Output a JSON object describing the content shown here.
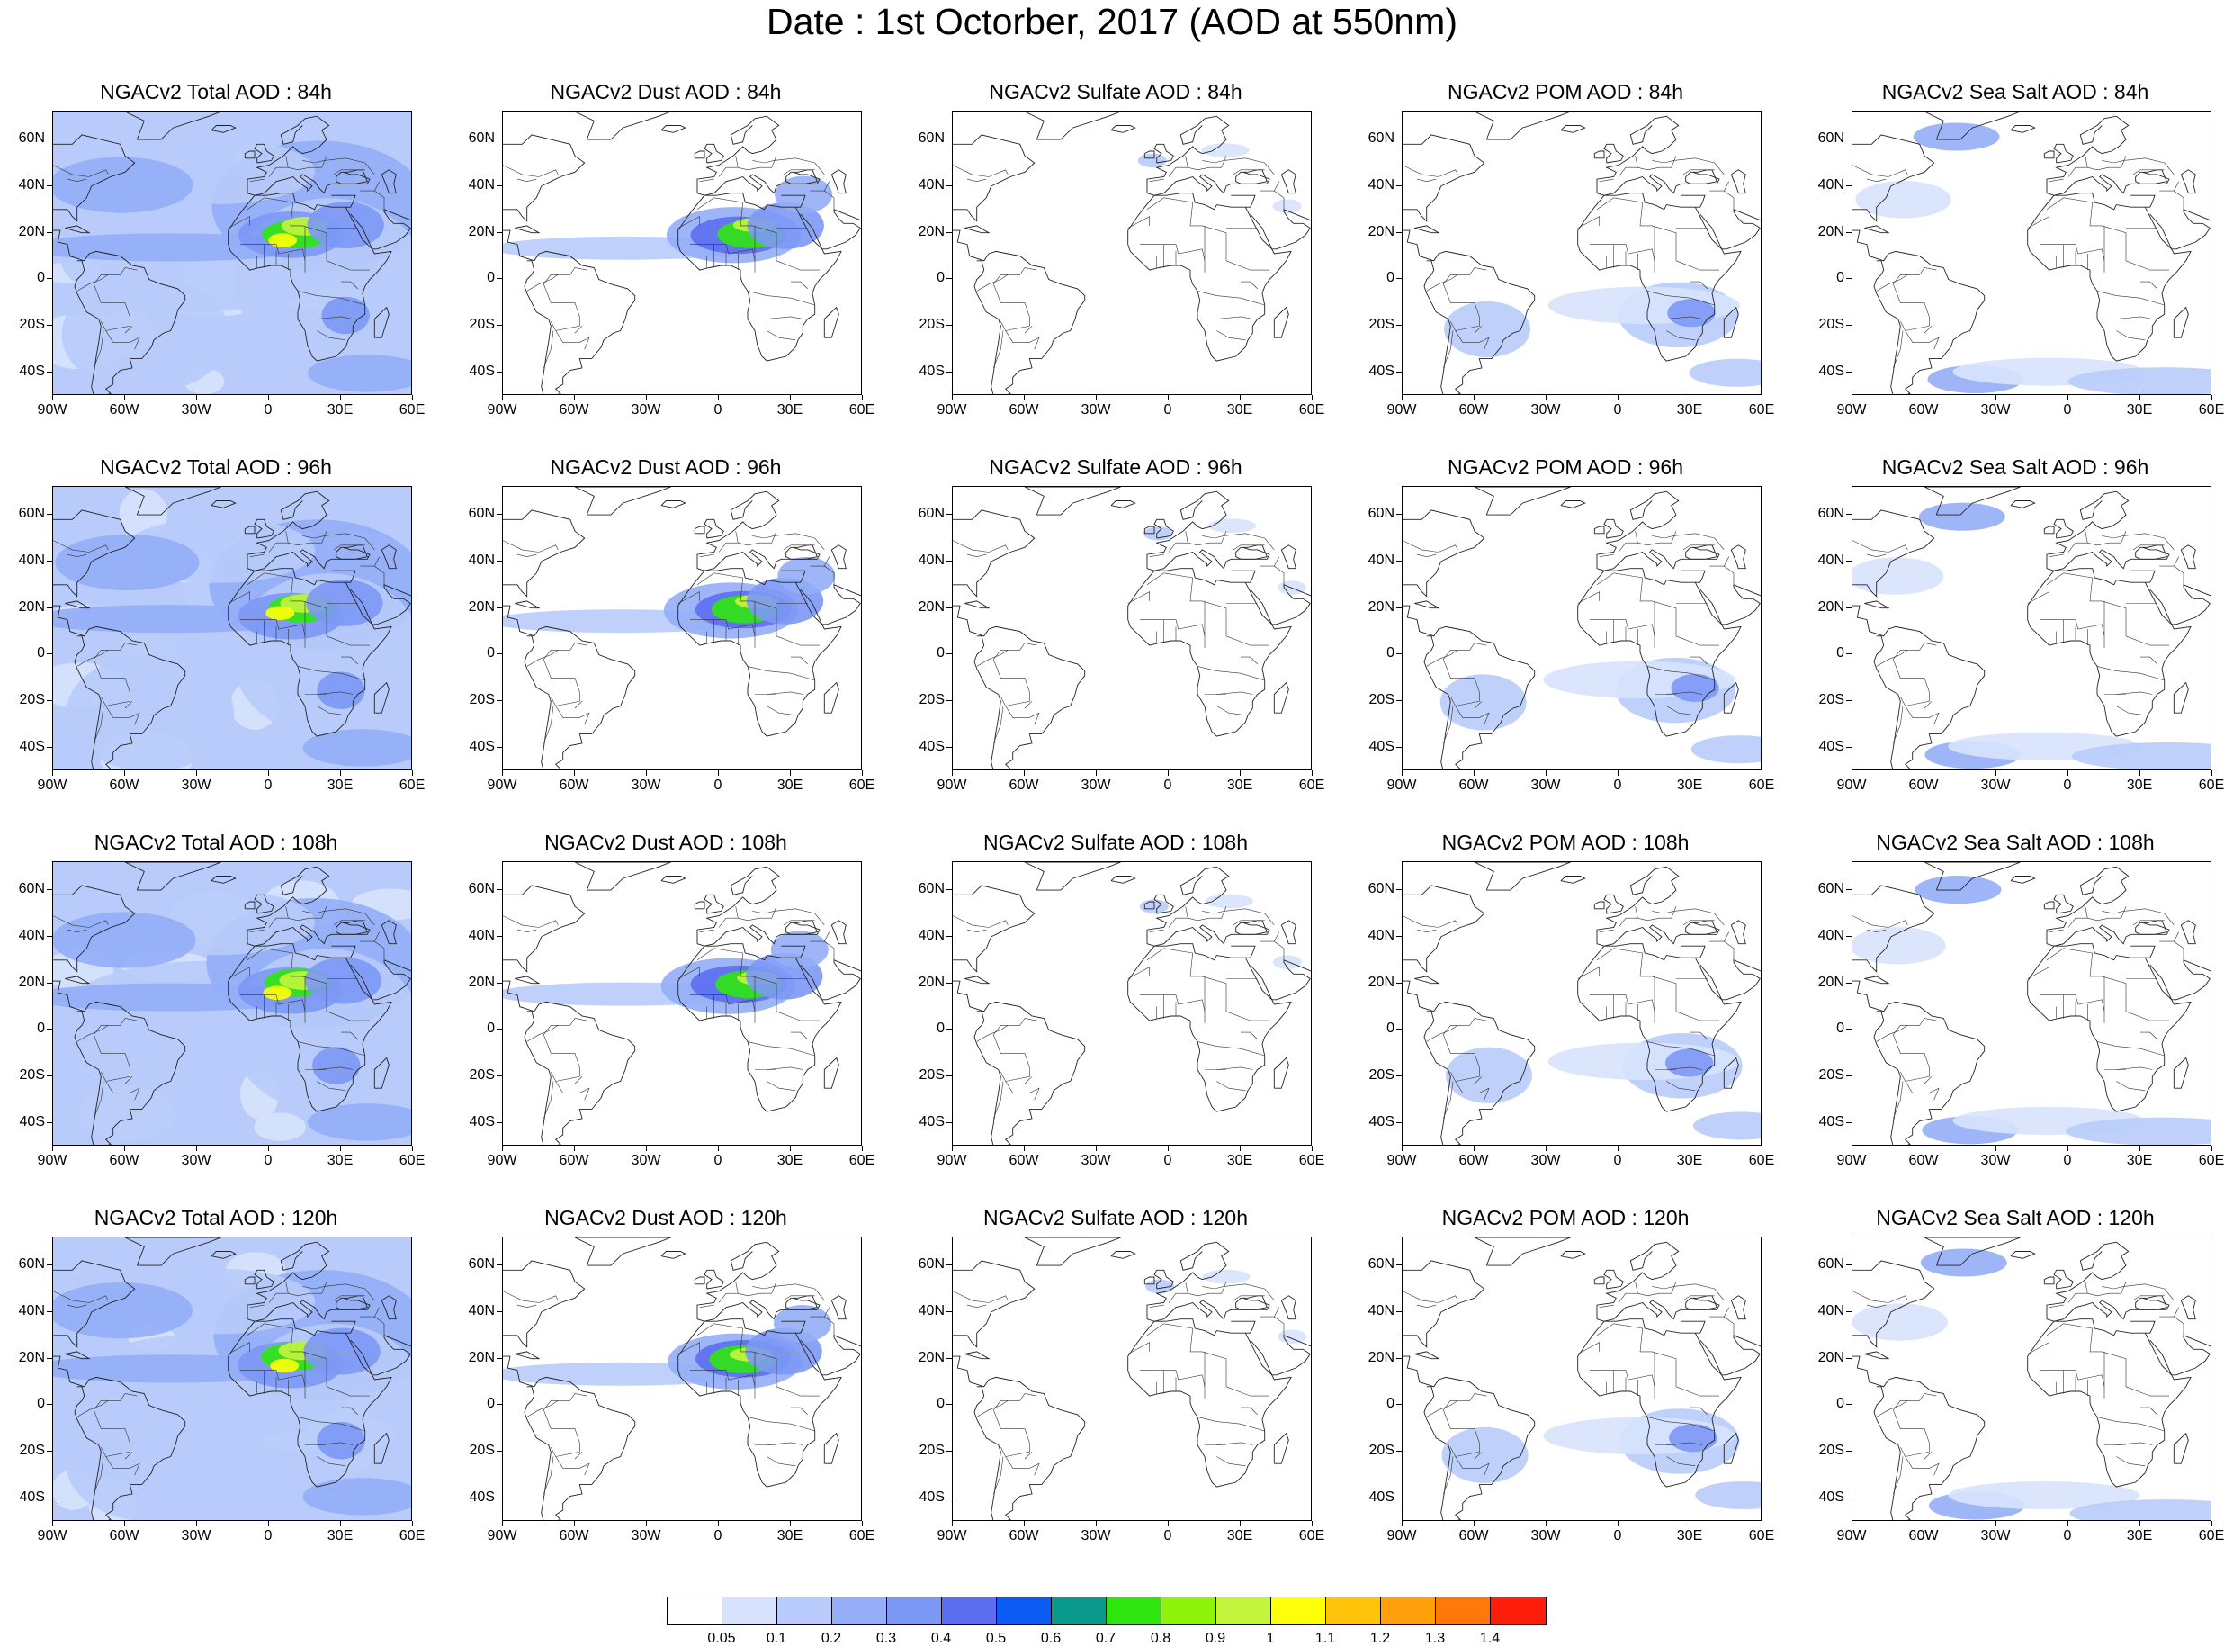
{
  "title": "Date : 1st Octorber, 2017 (AOD at 550nm)",
  "panels": [
    [
      {
        "title": "NGACv2 Total AOD : 84h",
        "species": "total"
      },
      {
        "title": "NGACv2 Dust AOD : 84h",
        "species": "dust"
      },
      {
        "title": "NGACv2 Sulfate AOD : 84h",
        "species": "sulfate"
      },
      {
        "title": "NGACv2 POM AOD : 84h",
        "species": "pom"
      },
      {
        "title": "NGACv2 Sea Salt AOD : 84h",
        "species": "seasalt"
      }
    ],
    [
      {
        "title": "NGACv2 Total AOD : 96h",
        "species": "total"
      },
      {
        "title": "NGACv2 Dust AOD : 96h",
        "species": "dust"
      },
      {
        "title": "NGACv2 Sulfate AOD : 96h",
        "species": "sulfate"
      },
      {
        "title": "NGACv2 POM AOD : 96h",
        "species": "pom"
      },
      {
        "title": "NGACv2 Sea Salt AOD : 96h",
        "species": "seasalt"
      }
    ],
    [
      {
        "title": "NGACv2 Total AOD : 108h",
        "species": "total"
      },
      {
        "title": "NGACv2 Dust AOD : 108h",
        "species": "dust"
      },
      {
        "title": "NGACv2 Sulfate AOD : 108h",
        "species": "sulfate"
      },
      {
        "title": "NGACv2 POM AOD : 108h",
        "species": "pom"
      },
      {
        "title": "NGACv2 Sea Salt AOD : 108h",
        "species": "seasalt"
      }
    ],
    [
      {
        "title": "NGACv2 Total AOD : 120h",
        "species": "total"
      },
      {
        "title": "NGACv2 Dust AOD : 120h",
        "species": "dust"
      },
      {
        "title": "NGACv2 Sulfate AOD : 120h",
        "species": "sulfate"
      },
      {
        "title": "NGACv2 POM AOD : 120h",
        "species": "pom"
      },
      {
        "title": "NGACv2 Sea Salt  AOD : 120h",
        "species": "seasalt"
      }
    ]
  ],
  "lat_labels": [
    "60N",
    "40N",
    "20N",
    "0",
    "20S",
    "40S"
  ],
  "lon_labels": [
    "90W",
    "60W",
    "30W",
    "0",
    "30E",
    "60E"
  ],
  "colorbar": {
    "colors": [
      "#ffffff",
      "#d7e3fd",
      "#b8cbfa",
      "#94aef7",
      "#7c98f5",
      "#5c6ef0",
      "#0a5cf2",
      "#0a9a8c",
      "#2fe50f",
      "#8ef50a",
      "#c2f53c",
      "#ffff0a",
      "#ffc30a",
      "#ff9f0a",
      "#ff780a",
      "#ff1e0a"
    ],
    "labels": [
      "0.05",
      "0.1",
      "0.2",
      "0.3",
      "0.4",
      "0.5",
      "0.6",
      "0.7",
      "0.8",
      "0.9",
      "1",
      "1.1",
      "1.2",
      "1.3",
      "1.4"
    ]
  }
}
